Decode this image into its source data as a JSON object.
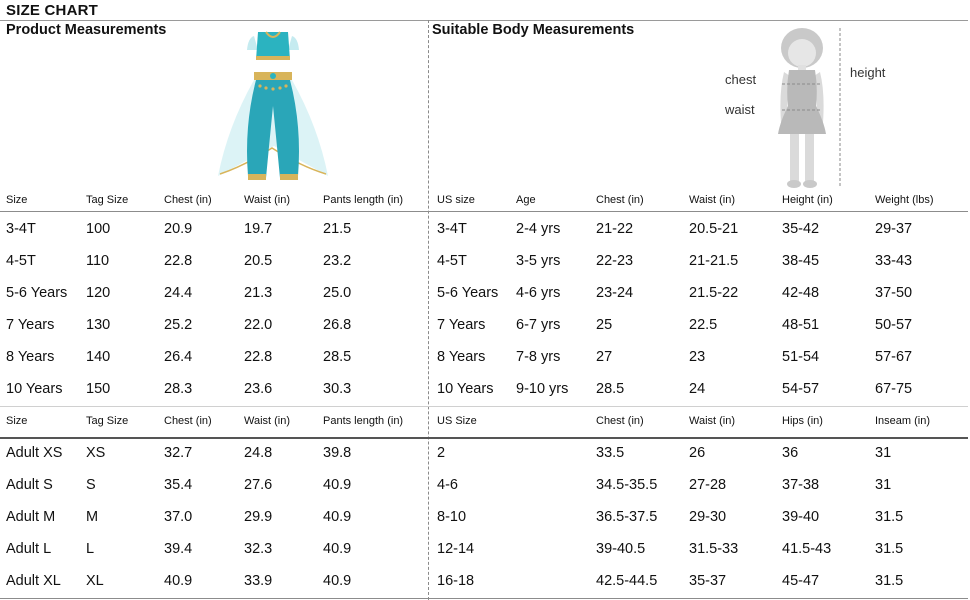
{
  "title": "SIZE CHART",
  "product_section_title": "Product Measurements",
  "body_section_title": "Suitable Body Measurements",
  "figure_labels": {
    "chest": "chest",
    "waist": "waist",
    "height": "height"
  },
  "kids": {
    "headers": [
      "Size",
      "Tag Size",
      "Chest (in)",
      "Waist (in)",
      "Pants length (in)",
      "US size",
      "Age",
      "Chest (in)",
      "Waist (in)",
      "Height (in)",
      "Weight (lbs)"
    ],
    "rows": [
      [
        "3-4T",
        "100",
        "20.9",
        "19.7",
        "21.5",
        "3-4T",
        "2-4 yrs",
        "21-22",
        "20.5-21",
        "35-42",
        "29-37"
      ],
      [
        "4-5T",
        "110",
        "22.8",
        "20.5",
        "23.2",
        "4-5T",
        "3-5 yrs",
        "22-23",
        "21-21.5",
        "38-45",
        "33-43"
      ],
      [
        "5-6 Years",
        "120",
        "24.4",
        "21.3",
        "25.0",
        "5-6 Years",
        "4-6 yrs",
        "23-24",
        "21.5-22",
        "42-48",
        "37-50"
      ],
      [
        "7 Years",
        "130",
        "25.2",
        "22.0",
        "26.8",
        "7 Years",
        "6-7 yrs",
        "25",
        "22.5",
        "48-51",
        "50-57"
      ],
      [
        "8 Years",
        "140",
        "26.4",
        "22.8",
        "28.5",
        "8 Years",
        "7-8 yrs",
        "27",
        "23",
        "51-54",
        "57-67"
      ],
      [
        "10 Years",
        "150",
        "28.3",
        "23.6",
        "30.3",
        "10 Years",
        "9-10 yrs",
        "28.5",
        "24",
        "54-57",
        "67-75"
      ]
    ]
  },
  "adult": {
    "headers": [
      "Size",
      "Tag Size",
      "Chest (in)",
      "Waist (in)",
      "Pants length (in)",
      "US Size",
      "",
      "Chest (in)",
      "Waist (in)",
      "Hips (in)",
      "Inseam (in)"
    ],
    "rows": [
      [
        "Adult XS",
        "XS",
        "32.7",
        "24.8",
        "39.8",
        "2",
        "",
        "33.5",
        "26",
        "36",
        "31"
      ],
      [
        "Adult S",
        "S",
        "35.4",
        "27.6",
        "40.9",
        "4-6",
        "",
        "34.5-35.5",
        "27-28",
        "37-38",
        "31"
      ],
      [
        "Adult M",
        "M",
        "37.0",
        "29.9",
        "40.9",
        "8-10",
        "",
        "36.5-37.5",
        "29-30",
        "39-40",
        "31.5"
      ],
      [
        "Adult L",
        "L",
        "39.4",
        "32.3",
        "40.9",
        "12-14",
        "",
        "39-40.5",
        "31.5-33",
        "41.5-43",
        "31.5"
      ],
      [
        "Adult XL",
        "XL",
        "40.9",
        "33.9",
        "40.9",
        "16-18",
        "",
        "42.5-44.5",
        "35-37",
        "45-47",
        "31.5"
      ]
    ]
  },
  "colors": {
    "costume_teal": "#2bb3c0",
    "costume_gold": "#d8b45a",
    "silhouette_grey": "#cfcfcf",
    "rule": "#8c8c8c"
  }
}
